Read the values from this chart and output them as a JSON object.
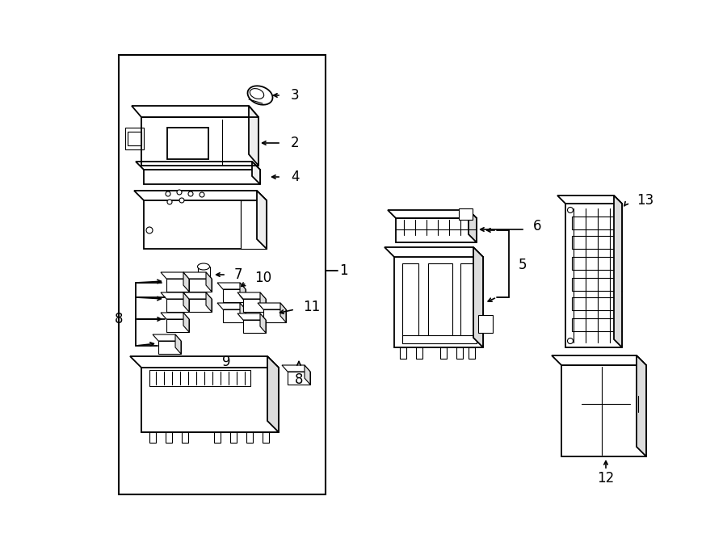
{
  "bg_color": "#ffffff",
  "line_color": "#000000",
  "fig_width": 9.0,
  "fig_height": 6.61,
  "dpi": 100,
  "lw_main": 1.3,
  "lw_detail": 0.8,
  "lw_border": 1.5,
  "label_fontsize": 11,
  "number_fontsize": 12
}
